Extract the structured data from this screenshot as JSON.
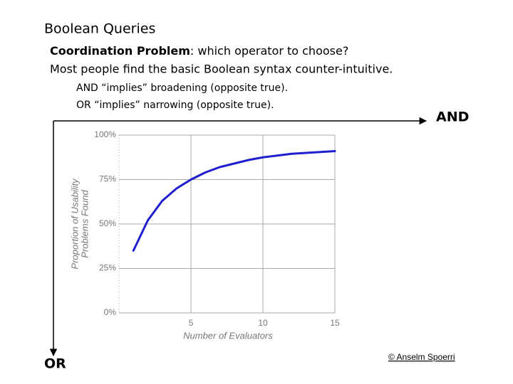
{
  "title": "Boolean Queries",
  "bullets": [
    {
      "term": "Coordination Problem",
      "text": ": which operator to choose?"
    },
    {
      "text": "Most people find the basic Boolean syntax counter-intuitive."
    }
  ],
  "sub_bullets": [
    "AND “implies” broadening (opposite true).",
    "OR “implies” narrowing (opposite true)."
  ],
  "axis_labels": {
    "horizontal": "AND",
    "vertical": "OR"
  },
  "credit": "© Anselm Spoerri",
  "chart_data": {
    "type": "line",
    "x_label": "Number of Evaluators",
    "y_label": [
      "Proportion of Usability",
      "Problems Found"
    ],
    "x": [
      1,
      2,
      3,
      4,
      5,
      6,
      7,
      8,
      9,
      10,
      11,
      12,
      13,
      14,
      15
    ],
    "series": [
      {
        "color": "#1f1fd0",
        "values": [
          35,
          52,
          63,
          70,
          75,
          79,
          82,
          84,
          86,
          87.5,
          88.5,
          89.5,
          90,
          90.5,
          91
        ]
      }
    ],
    "xlim": [
      0,
      15
    ],
    "xticks": [
      5,
      10,
      15
    ],
    "ylim": [
      0,
      100
    ],
    "yticks": [
      {
        "value": 0,
        "label": "0%"
      },
      {
        "value": 25,
        "label": "25%"
      },
      {
        "value": 50,
        "label": "50%"
      },
      {
        "value": 75,
        "label": "75%"
      },
      {
        "value": 100,
        "label": "100%"
      }
    ],
    "grid": true
  }
}
